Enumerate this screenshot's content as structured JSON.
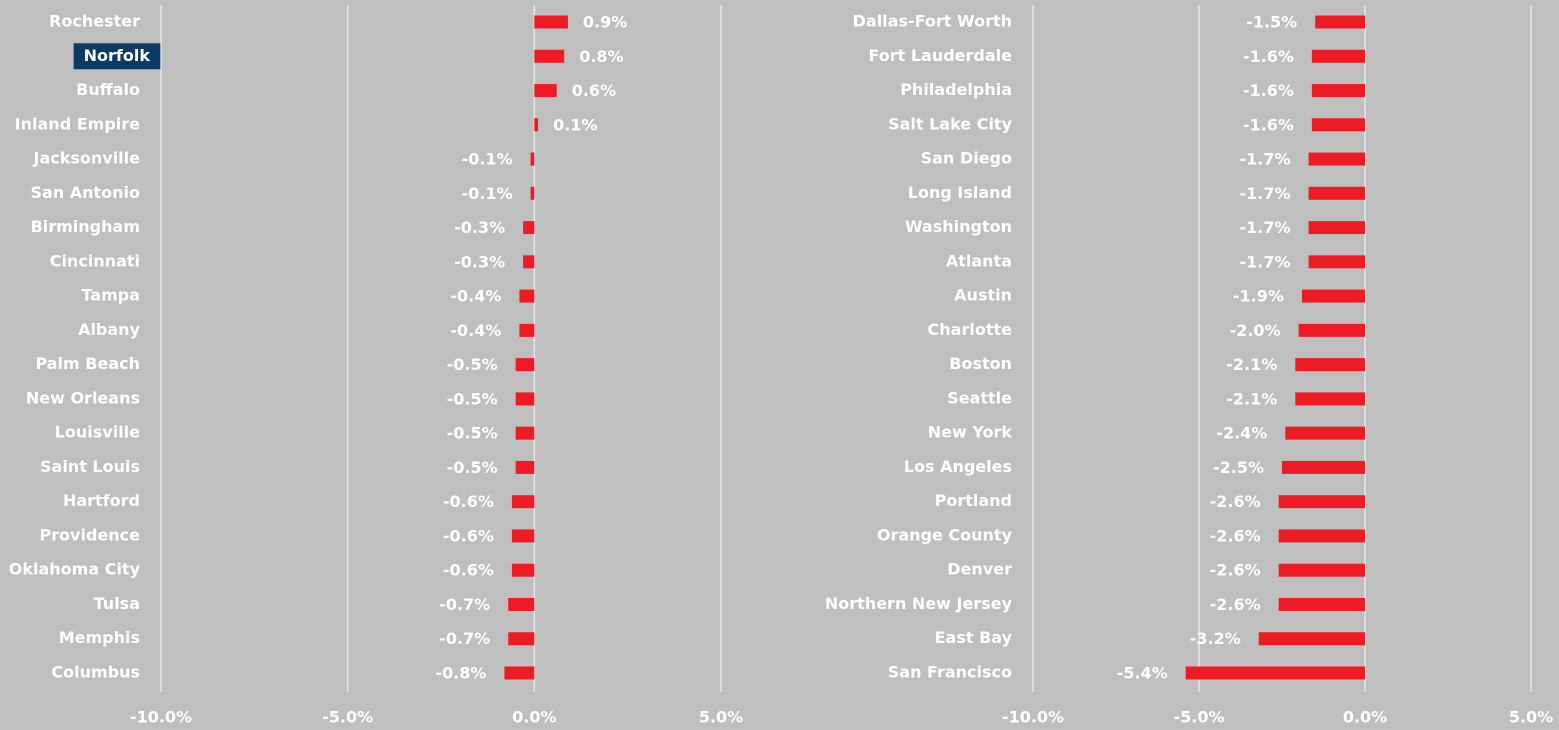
{
  "chart_data": [
    {
      "type": "bar",
      "orientation": "horizontal",
      "categories": [
        "Rochester",
        "Norfolk",
        "Buffalo",
        "Inland Empire",
        "Jacksonville",
        "San Antonio",
        "Birmingham",
        "Cincinnati",
        "Tampa",
        "Albany",
        "Palm Beach",
        "New Orleans",
        "Louisville",
        "Saint Louis",
        "Hartford",
        "Providence",
        "Oklahoma City",
        "Tulsa",
        "Memphis",
        "Columbus"
      ],
      "values": [
        0.9,
        0.8,
        0.6,
        0.1,
        -0.1,
        -0.1,
        -0.3,
        -0.3,
        -0.4,
        -0.4,
        -0.5,
        -0.5,
        -0.5,
        -0.5,
        -0.6,
        -0.6,
        -0.6,
        -0.7,
        -0.7,
        -0.8
      ],
      "value_labels": [
        "0.9%",
        "0.8%",
        "0.6%",
        "0.1%",
        "-0.1%",
        "-0.1%",
        "-0.3%",
        "-0.3%",
        "-0.4%",
        "-0.4%",
        "-0.5%",
        "-0.5%",
        "-0.5%",
        "-0.5%",
        "-0.6%",
        "-0.6%",
        "-0.6%",
        "-0.7%",
        "-0.7%",
        "-0.8%"
      ],
      "color": "#ed1c24",
      "highlight": 1,
      "highlight_color": "#0c3a63",
      "xlim": [
        -10,
        5
      ],
      "xticks": [
        {
          "value": -10,
          "label": "-10.0%"
        },
        {
          "value": -5,
          "label": "-5.0%"
        },
        {
          "value": 0,
          "label": "0.0%"
        },
        {
          "value": 5,
          "label": "5.0%"
        }
      ],
      "grid": true
    },
    {
      "type": "bar",
      "orientation": "horizontal",
      "categories": [
        "Dallas-Fort Worth",
        "Fort Lauderdale",
        "Philadelphia",
        "Salt Lake City",
        "San Diego",
        "Long Island",
        "Washington",
        "Atlanta",
        "Austin",
        "Charlotte",
        "Boston",
        "Seattle",
        "New York",
        "Los Angeles",
        "Portland",
        "Orange County",
        "Denver",
        "Northern New Jersey",
        "East Bay",
        "San Francisco"
      ],
      "values": [
        -1.5,
        -1.6,
        -1.6,
        -1.6,
        -1.7,
        -1.7,
        -1.7,
        -1.7,
        -1.9,
        -2.0,
        -2.1,
        -2.1,
        -2.4,
        -2.5,
        -2.6,
        -2.6,
        -2.6,
        -2.6,
        -3.2,
        -5.4
      ],
      "value_labels": [
        "-1.5%",
        "-1.6%",
        "-1.6%",
        "-1.6%",
        "-1.7%",
        "-1.7%",
        "-1.7%",
        "-1.7%",
        "-1.9%",
        "-2.0%",
        "-2.1%",
        "-2.1%",
        "-2.4%",
        "-2.5%",
        "-2.6%",
        "-2.6%",
        "-2.6%",
        "-2.6%",
        "-3.2%",
        "-5.4%"
      ],
      "color": "#ed1c24",
      "xlim": [
        -10,
        5
      ],
      "xticks": [
        {
          "value": -10,
          "label": "-10.0%"
        },
        {
          "value": -5,
          "label": "-5.0%"
        },
        {
          "value": 0,
          "label": "0.0%"
        },
        {
          "value": 5,
          "label": "5.0%"
        }
      ],
      "grid": true
    }
  ]
}
